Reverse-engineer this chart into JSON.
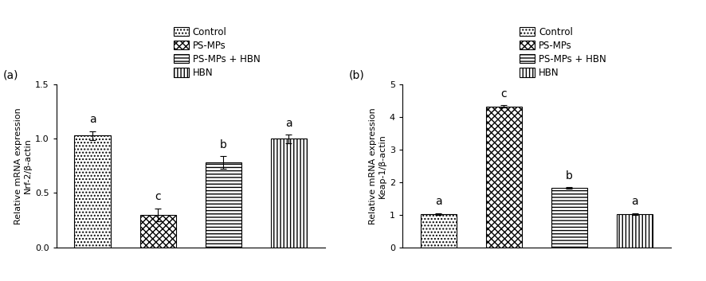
{
  "panel_a": {
    "title": "(a)",
    "ylabel": "Relative mRNA expression\nNrf-2/β-actin",
    "ylim": [
      0,
      1.5
    ],
    "yticks": [
      0.0,
      0.5,
      1.0,
      1.5
    ],
    "values": [
      1.03,
      0.3,
      0.78,
      1.0
    ],
    "errors": [
      0.04,
      0.06,
      0.06,
      0.04
    ],
    "letters": [
      "a",
      "c",
      "b",
      "a"
    ],
    "categories": [
      "Control",
      "PS-MPs",
      "PS-MPs + HBN",
      "HBN"
    ]
  },
  "panel_b": {
    "title": "(b)",
    "ylabel": "Relative mRNA expression\nKeap-1/β-actin",
    "ylim": [
      0,
      5
    ],
    "yticks": [
      0,
      1,
      2,
      3,
      4,
      5
    ],
    "values": [
      1.02,
      4.32,
      1.82,
      1.02
    ],
    "errors": [
      0.03,
      0.04,
      0.03,
      0.03
    ],
    "letters": [
      "a",
      "c",
      "b",
      "a"
    ],
    "categories": [
      "Control",
      "PS-MPs",
      "PS-MPs + HBN",
      "HBN"
    ]
  },
  "legend_labels": [
    "Control",
    "PS-MPs",
    "PS-MPs + HBN",
    "HBN"
  ],
  "hatch_patterns": [
    "....",
    "xxxx",
    "----",
    "||||"
  ],
  "bar_width": 0.55,
  "font_size": 8,
  "letter_font_size": 10,
  "label_font_size": 8,
  "title_font_size": 10
}
